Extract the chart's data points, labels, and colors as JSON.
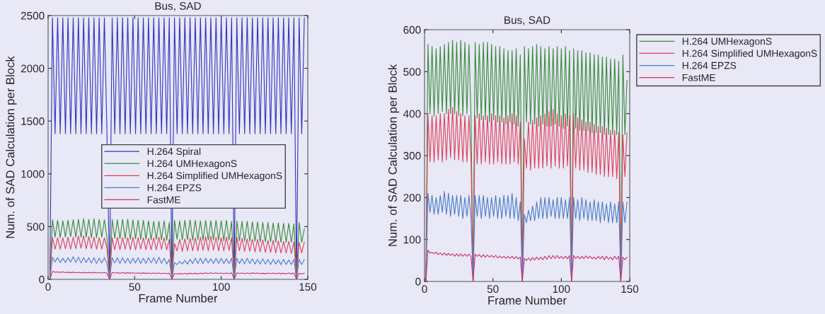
{
  "chart_data": [
    {
      "type": "line",
      "title": "Bus, SAD",
      "xlabel": "Frame Number",
      "ylabel": "Num. of SAD Calculation per Block",
      "x": [
        1,
        2.5,
        4,
        5.5,
        7,
        8.5,
        10,
        11.5,
        13,
        14.5,
        16,
        17.5,
        19,
        20.5,
        22,
        23.5,
        25,
        26.5,
        28,
        29.5,
        31,
        32.5,
        34,
        35.5,
        37,
        38.5,
        40,
        41.5,
        43,
        44.5,
        46,
        47.5,
        49,
        50.5,
        52,
        53.5,
        55,
        56.5,
        58,
        59.5,
        61,
        62.5,
        64,
        65.5,
        67,
        68.5,
        70,
        71.5,
        73,
        74.5,
        76,
        77.5,
        79,
        80.5,
        82,
        83.5,
        85,
        86.5,
        88,
        89.5,
        91,
        92.5,
        94,
        95.5,
        97,
        98.5,
        100,
        101.5,
        103,
        104.5,
        106,
        107.5,
        109,
        110.5,
        112,
        113.5,
        115,
        116.5,
        118,
        119.5,
        121,
        122.5,
        124,
        125.5,
        127,
        128.5,
        130,
        131.5,
        133,
        134.5,
        136,
        137.5,
        139,
        140.5,
        142,
        143.5,
        145,
        146.5,
        148
      ],
      "series": [
        {
          "name": "H.264 Spiral",
          "color": "#3333bb",
          "values": [
            0,
            2480,
            1380,
            2480,
            1380,
            2480,
            1380,
            2480,
            1380,
            2480,
            1380,
            2480,
            1380,
            2480,
            1380,
            2480,
            1380,
            2480,
            1380,
            2480,
            1380,
            2480,
            1380,
            0,
            2480,
            1380,
            2480,
            1380,
            2480,
            1380,
            2480,
            1380,
            2480,
            1380,
            2480,
            1380,
            2480,
            1380,
            2480,
            1380,
            2480,
            1380,
            2480,
            1380,
            2480,
            1380,
            2480,
            0,
            2480,
            1380,
            2480,
            1380,
            2480,
            1380,
            2480,
            1380,
            2480,
            1380,
            2480,
            1380,
            2480,
            1380,
            2480,
            1380,
            2480,
            1380,
            2480,
            1380,
            2480,
            1380,
            2480,
            0,
            2480,
            1380,
            2480,
            1380,
            2480,
            1380,
            2480,
            1380,
            2480,
            1380,
            2480,
            1380,
            2480,
            1380,
            2480,
            1380,
            2480,
            1380,
            2480,
            1380,
            2480,
            1380,
            2480,
            0,
            2480,
            1380,
            2480
          ]
        },
        {
          "name": "H.264 UMHexagonS",
          "color": "#3a8a3a",
          "values": [
            0,
            565,
            400,
            560,
            395,
            555,
            400,
            560,
            405,
            565,
            400,
            570,
            400,
            575,
            400,
            570,
            395,
            575,
            395,
            570,
            400,
            565,
            390,
            0,
            570,
            390,
            565,
            385,
            570,
            385,
            570,
            380,
            565,
            385,
            560,
            380,
            560,
            380,
            555,
            375,
            550,
            380,
            550,
            375,
            555,
            370,
            540,
            0,
            560,
            380,
            555,
            375,
            560,
            375,
            565,
            370,
            560,
            375,
            555,
            370,
            560,
            370,
            555,
            375,
            560,
            370,
            555,
            365,
            560,
            370,
            550,
            0,
            555,
            365,
            550,
            360,
            550,
            360,
            545,
            360,
            545,
            355,
            540,
            355,
            540,
            355,
            535,
            350,
            535,
            350,
            530,
            350,
            530,
            350,
            525,
            0,
            540,
            350,
            480
          ]
        },
        {
          "name": "H.264 Simplified UMHexagonS",
          "color": "#e0405a",
          "values": [
            0,
            400,
            285,
            395,
            285,
            395,
            290,
            400,
            285,
            400,
            290,
            410,
            295,
            415,
            290,
            405,
            290,
            400,
            285,
            395,
            285,
            395,
            290,
            0,
            395,
            280,
            400,
            280,
            395,
            285,
            395,
            280,
            400,
            280,
            395,
            285,
            395,
            280,
            390,
            280,
            395,
            280,
            400,
            285,
            395,
            280,
            380,
            0,
            340,
            270,
            380,
            265,
            385,
            270,
            390,
            270,
            395,
            270,
            400,
            275,
            405,
            270,
            410,
            275,
            400,
            270,
            395,
            270,
            400,
            275,
            395,
            0,
            400,
            270,
            390,
            265,
            385,
            265,
            380,
            260,
            380,
            260,
            375,
            255,
            370,
            255,
            370,
            250,
            365,
            250,
            360,
            250,
            360,
            245,
            355,
            0,
            350,
            250,
            355
          ]
        },
        {
          "name": "H.264 EPZS",
          "color": "#4a7ec8",
          "values": [
            0,
            210,
            165,
            205,
            160,
            200,
            160,
            205,
            165,
            215,
            160,
            210,
            155,
            205,
            160,
            205,
            155,
            205,
            150,
            200,
            155,
            205,
            150,
            0,
            205,
            155,
            205,
            150,
            205,
            155,
            200,
            150,
            200,
            155,
            205,
            150,
            200,
            150,
            205,
            155,
            205,
            150,
            210,
            150,
            200,
            145,
            190,
            0,
            160,
            140,
            170,
            145,
            180,
            145,
            190,
            150,
            200,
            150,
            200,
            150,
            200,
            155,
            195,
            150,
            200,
            150,
            200,
            150,
            195,
            150,
            200,
            0,
            200,
            150,
            195,
            145,
            200,
            150,
            195,
            145,
            190,
            145,
            195,
            145,
            190,
            140,
            190,
            145,
            185,
            140,
            190,
            140,
            185,
            140,
            190,
            0,
            190,
            140,
            190
          ]
        },
        {
          "name": "FastME",
          "color": "#d0306a",
          "values": [
            0,
            75,
            68,
            70,
            66,
            70,
            64,
            68,
            63,
            68,
            62,
            67,
            62,
            66,
            60,
            66,
            60,
            66,
            60,
            65,
            60,
            65,
            59,
            0,
            65,
            60,
            64,
            58,
            64,
            58,
            63,
            58,
            62,
            57,
            62,
            56,
            61,
            56,
            60,
            55,
            60,
            55,
            60,
            54,
            59,
            54,
            58,
            0,
            55,
            50,
            56,
            50,
            57,
            51,
            58,
            52,
            58,
            52,
            60,
            53,
            62,
            54,
            62,
            55,
            62,
            55,
            60,
            54,
            60,
            54,
            62,
            0,
            62,
            55,
            60,
            54,
            60,
            54,
            61,
            55,
            60,
            54,
            58,
            53,
            60,
            54,
            60,
            52,
            60,
            53,
            58,
            52,
            60,
            53,
            60,
            0,
            58,
            52,
            58
          ]
        }
      ],
      "xlim": [
        0,
        150
      ],
      "xticks": [
        0,
        50,
        100,
        150
      ],
      "ylim": [
        0,
        2500
      ],
      "yticks": [
        0,
        500,
        1000,
        1500,
        2000,
        2500
      ],
      "legend": "center",
      "grid": false
    },
    {
      "type": "line",
      "title": "Bus, SAD",
      "xlabel": "Frame Number",
      "ylabel": "Num. of SAD Calculation per Block",
      "x": [
        1,
        2.5,
        4,
        5.5,
        7,
        8.5,
        10,
        11.5,
        13,
        14.5,
        16,
        17.5,
        19,
        20.5,
        22,
        23.5,
        25,
        26.5,
        28,
        29.5,
        31,
        32.5,
        34,
        35.5,
        37,
        38.5,
        40,
        41.5,
        43,
        44.5,
        46,
        47.5,
        49,
        50.5,
        52,
        53.5,
        55,
        56.5,
        58,
        59.5,
        61,
        62.5,
        64,
        65.5,
        67,
        68.5,
        70,
        71.5,
        73,
        74.5,
        76,
        77.5,
        79,
        80.5,
        82,
        83.5,
        85,
        86.5,
        88,
        89.5,
        91,
        92.5,
        94,
        95.5,
        97,
        98.5,
        100,
        101.5,
        103,
        104.5,
        106,
        107.5,
        109,
        110.5,
        112,
        113.5,
        115,
        116.5,
        118,
        119.5,
        121,
        122.5,
        124,
        125.5,
        127,
        128.5,
        130,
        131.5,
        133,
        134.5,
        136,
        137.5,
        139,
        140.5,
        142,
        143.5,
        145,
        146.5,
        148
      ],
      "series": [
        {
          "name": "H.264 UMHexagonS",
          "color": "#3a8a3a",
          "values": [
            0,
            565,
            400,
            560,
            395,
            555,
            400,
            560,
            405,
            565,
            400,
            570,
            400,
            575,
            400,
            570,
            395,
            575,
            395,
            570,
            400,
            565,
            390,
            0,
            570,
            390,
            565,
            385,
            570,
            385,
            570,
            380,
            565,
            385,
            560,
            380,
            560,
            380,
            555,
            375,
            550,
            380,
            550,
            375,
            555,
            370,
            540,
            0,
            560,
            380,
            555,
            375,
            560,
            375,
            565,
            370,
            560,
            375,
            555,
            370,
            560,
            370,
            555,
            375,
            560,
            370,
            555,
            365,
            560,
            370,
            550,
            0,
            555,
            365,
            550,
            360,
            550,
            360,
            545,
            360,
            545,
            355,
            540,
            355,
            540,
            355,
            535,
            350,
            535,
            350,
            530,
            350,
            530,
            350,
            525,
            0,
            540,
            350,
            480
          ]
        },
        {
          "name": "H.264 Simplified UMHexagonS",
          "color": "#e0405a",
          "values": [
            0,
            400,
            285,
            395,
            285,
            395,
            290,
            400,
            285,
            400,
            290,
            410,
            295,
            415,
            290,
            405,
            290,
            400,
            285,
            395,
            285,
            395,
            290,
            0,
            395,
            280,
            400,
            280,
            395,
            285,
            395,
            280,
            400,
            280,
            395,
            285,
            395,
            280,
            390,
            280,
            395,
            280,
            400,
            285,
            395,
            280,
            380,
            0,
            340,
            270,
            380,
            265,
            385,
            270,
            390,
            270,
            395,
            270,
            400,
            275,
            405,
            270,
            410,
            275,
            400,
            270,
            395,
            270,
            400,
            275,
            395,
            0,
            400,
            270,
            390,
            265,
            385,
            265,
            380,
            260,
            380,
            260,
            375,
            255,
            370,
            255,
            370,
            250,
            365,
            250,
            360,
            250,
            360,
            245,
            355,
            0,
            350,
            250,
            355
          ]
        },
        {
          "name": "H.264 EPZS",
          "color": "#4a7ec8",
          "values": [
            0,
            210,
            165,
            205,
            160,
            200,
            160,
            205,
            165,
            215,
            160,
            210,
            155,
            205,
            160,
            205,
            155,
            205,
            150,
            200,
            155,
            205,
            150,
            0,
            205,
            155,
            205,
            150,
            205,
            155,
            200,
            150,
            200,
            155,
            205,
            150,
            200,
            150,
            205,
            155,
            205,
            150,
            210,
            150,
            200,
            145,
            190,
            0,
            160,
            140,
            170,
            145,
            180,
            145,
            190,
            150,
            200,
            150,
            200,
            150,
            200,
            155,
            195,
            150,
            200,
            150,
            200,
            150,
            195,
            150,
            200,
            0,
            200,
            150,
            195,
            145,
            200,
            150,
            195,
            145,
            190,
            145,
            195,
            145,
            190,
            140,
            190,
            145,
            185,
            140,
            190,
            140,
            185,
            140,
            190,
            0,
            190,
            140,
            190
          ]
        },
        {
          "name": "FastME",
          "color": "#d0306a",
          "values": [
            0,
            75,
            68,
            70,
            66,
            70,
            64,
            68,
            63,
            68,
            62,
            67,
            62,
            66,
            60,
            66,
            60,
            66,
            60,
            65,
            60,
            65,
            59,
            0,
            65,
            60,
            64,
            58,
            64,
            58,
            63,
            58,
            62,
            57,
            62,
            56,
            61,
            56,
            60,
            55,
            60,
            55,
            60,
            54,
            59,
            54,
            58,
            0,
            55,
            50,
            56,
            50,
            57,
            51,
            58,
            52,
            58,
            52,
            60,
            53,
            62,
            54,
            62,
            55,
            62,
            55,
            60,
            54,
            60,
            54,
            62,
            0,
            62,
            55,
            60,
            54,
            60,
            54,
            61,
            55,
            60,
            54,
            58,
            53,
            60,
            54,
            60,
            52,
            60,
            53,
            58,
            52,
            60,
            53,
            60,
            0,
            58,
            52,
            58
          ]
        }
      ],
      "xlim": [
        0,
        150
      ],
      "xticks": [
        0,
        50,
        100,
        150
      ],
      "ylim": [
        0,
        600
      ],
      "yticks": [
        0,
        100,
        200,
        300,
        400,
        500,
        600
      ],
      "legend": "right",
      "grid": false
    }
  ]
}
